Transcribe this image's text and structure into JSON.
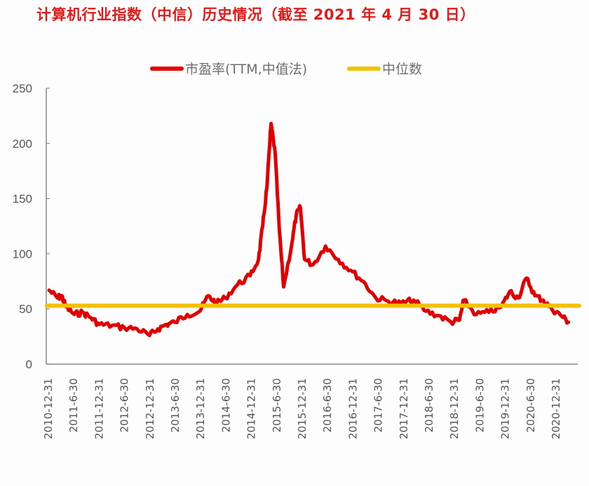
{
  "header": {
    "title": "计算机行业指数（中信）历史情况（截至 2021 年 4 月 30 日）"
  },
  "legend": [
    {
      "label": "市盈率(TTM,中值法)",
      "color": "#e00000"
    },
    {
      "label": "中位数",
      "color": "#f5c000"
    }
  ],
  "chart_data": {
    "type": "line",
    "title": "计算机行业指数（中信）历史情况（截至 2021 年 4 月 30 日）",
    "xlabel": "",
    "ylabel": "",
    "ylim": [
      0,
      250
    ],
    "yticks": [
      0,
      50,
      100,
      150,
      200,
      250
    ],
    "grid": false,
    "legend_position": "top",
    "categories": [
      "2010-12-31",
      "2011-6-30",
      "2011-12-31",
      "2012-6-30",
      "2012-12-31",
      "2013-6-30",
      "2013-12-31",
      "2014-6-30",
      "2014-12-31",
      "2015-6-30",
      "2015-12-31",
      "2016-6-30",
      "2016-12-31",
      "2017-6-30",
      "2017-12-31",
      "2018-6-30",
      "2018-12-31",
      "2019-6-30",
      "2019-12-31",
      "2020-6-30",
      "2020-12-31"
    ],
    "series": [
      {
        "name": "市盈率(TTM,中值法)",
        "color": "#e00000",
        "points": [
          [
            "2010-12-31",
            67
          ],
          [
            "2011-02",
            60
          ],
          [
            "2011-03",
            62
          ],
          [
            "2011-04",
            52
          ],
          [
            "2011-6-30",
            45
          ],
          [
            "2011-08",
            47
          ],
          [
            "2011-10",
            42
          ],
          [
            "2011-12-31",
            36
          ],
          [
            "2012-03",
            35
          ],
          [
            "2012-6-30",
            33
          ],
          [
            "2012-09",
            32
          ],
          [
            "2012-12-31",
            26
          ],
          [
            "2013-02",
            32
          ],
          [
            "2013-04",
            36
          ],
          [
            "2013-6-30",
            38
          ],
          [
            "2013-09",
            45
          ],
          [
            "2013-12-31",
            48
          ],
          [
            "2014-02",
            62
          ],
          [
            "2014-04",
            55
          ],
          [
            "2014-6-30",
            60
          ],
          [
            "2014-09",
            72
          ],
          [
            "2014-12-31",
            80
          ],
          [
            "2015-02",
            95
          ],
          [
            "2015-03",
            125
          ],
          [
            "2015-04",
            160
          ],
          [
            "2015-05",
            218
          ],
          [
            "2015-6-30",
            190
          ],
          [
            "2015-07",
            120
          ],
          [
            "2015-08",
            70
          ],
          [
            "2015-10",
            110
          ],
          [
            "2015-11",
            135
          ],
          [
            "2015-12-31",
            142
          ],
          [
            "2016-01",
            95
          ],
          [
            "2016-03",
            90
          ],
          [
            "2016-6-30",
            107
          ],
          [
            "2016-09",
            95
          ],
          [
            "2016-12-31",
            85
          ],
          [
            "2017-03",
            75
          ],
          [
            "2017-6-30",
            60
          ],
          [
            "2017-09",
            57
          ],
          [
            "2017-12-31",
            55
          ],
          [
            "2018-03",
            58
          ],
          [
            "2018-6-30",
            48
          ],
          [
            "2018-09",
            44
          ],
          [
            "2018-12-31",
            38
          ],
          [
            "2019-02",
            40
          ],
          [
            "2019-03",
            58
          ],
          [
            "2019-6-30",
            45
          ],
          [
            "2019-09",
            47
          ],
          [
            "2019-12-31",
            52
          ],
          [
            "2020-02",
            66
          ],
          [
            "2020-04",
            60
          ],
          [
            "2020-6-30",
            78
          ],
          [
            "2020-08",
            62
          ],
          [
            "2020-10",
            58
          ],
          [
            "2020-12-31",
            50
          ],
          [
            "2021-02",
            45
          ],
          [
            "2021-04-30",
            38
          ]
        ]
      },
      {
        "name": "中位数",
        "color": "#f5c000",
        "values_constant": 53
      }
    ]
  }
}
